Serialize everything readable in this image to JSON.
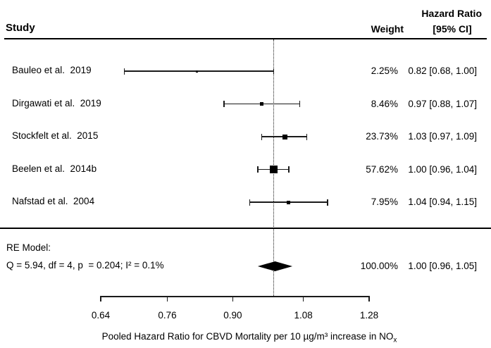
{
  "header": {
    "study_label": "Study",
    "hazard_ratio_label": "Hazard Ratio",
    "weight_label": "Weight",
    "ci_label": "[95% CI]"
  },
  "re_model": {
    "line1": "RE Model:",
    "line2": "Q = 5.94, df = 4, p  = 0.204; I² = 0.1%"
  },
  "colors": {
    "ink": "#000000",
    "background": "#ffffff"
  },
  "chart_data": {
    "type": "forest",
    "x_scale": "log2",
    "axis": {
      "min": 0.64,
      "max": 1.28,
      "ticks": [
        0.64,
        0.76,
        0.9,
        1.08,
        1.28
      ],
      "tick_labels": [
        "0.64",
        "0.76",
        "0.90",
        "1.08",
        "1.28"
      ],
      "reference_line": 1.0,
      "xlabel_main": "Pooled Hazard Ratio for CBVD Mortality per 10 µg/m³ increase in NO",
      "xlabel_sub": "x"
    },
    "studies": [
      {
        "label": "Bauleo et al.  2019",
        "weight": "2.25%",
        "ci_text": "0.82 [0.68, 1.00]",
        "hr": 0.82,
        "lo": 0.68,
        "hi": 1.0,
        "point_size": 3
      },
      {
        "label": "Dirgawati et al.  2019",
        "weight": "8.46%",
        "ci_text": "0.97 [0.88, 1.07]",
        "hr": 0.97,
        "lo": 0.88,
        "hi": 1.07,
        "point_size": 4.5
      },
      {
        "label": "Stockfelt et al.  2015",
        "weight": "23.73%",
        "ci_text": "1.03 [0.97, 1.09]",
        "hr": 1.03,
        "lo": 0.97,
        "hi": 1.09,
        "point_size": 7
      },
      {
        "label": "Beelen et al.  2014b",
        "weight": "57.62%",
        "ci_text": "1.00 [0.96, 1.04]",
        "hr": 1.0,
        "lo": 0.96,
        "hi": 1.04,
        "point_size": 11
      },
      {
        "label": "Nafstad et al.  2004",
        "weight": "7.95%",
        "ci_text": "1.04 [0.94, 1.15]",
        "hr": 1.04,
        "lo": 0.94,
        "hi": 1.15,
        "point_size": 5
      }
    ],
    "summary": {
      "weight": "100.00%",
      "ci_text": "1.00 [0.96, 1.05]",
      "hr": 1.0,
      "lo": 0.96,
      "hi": 1.05
    }
  }
}
